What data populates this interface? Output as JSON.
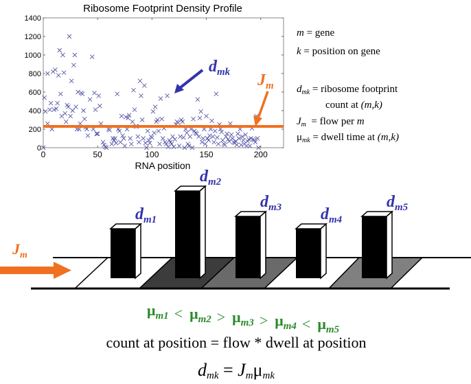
{
  "chart_data": {
    "type": "scatter",
    "title": "Ribosome Footprint Density Profile",
    "xlabel": "RNA position",
    "ylabel": "",
    "xlim": [
      0,
      221
    ],
    "ylim": [
      0,
      1400
    ],
    "xticks": [
      "0",
      "50",
      "100",
      "150",
      "200"
    ],
    "yticks": [
      "0",
      "200",
      "400",
      "600",
      "800",
      "1000",
      "1200",
      "1400"
    ],
    "hline": {
      "label": "J_m",
      "value": 230,
      "color": "#f07020"
    },
    "point_color": "#5a5aa8",
    "points": [
      [
        0,
        0
      ],
      [
        1,
        540
      ],
      [
        2,
        390
      ],
      [
        4,
        260
      ],
      [
        4,
        800
      ],
      [
        6,
        410
      ],
      [
        7,
        480
      ],
      [
        8,
        200
      ],
      [
        9,
        820
      ],
      [
        10,
        410
      ],
      [
        11,
        840
      ],
      [
        12,
        420
      ],
      [
        13,
        480
      ],
      [
        14,
        780
      ],
      [
        15,
        1050
      ],
      [
        16,
        580
      ],
      [
        17,
        340
      ],
      [
        18,
        1000
      ],
      [
        19,
        810
      ],
      [
        20,
        370
      ],
      [
        21,
        280
      ],
      [
        22,
        460
      ],
      [
        23,
        440
      ],
      [
        24,
        1200
      ],
      [
        25,
        340
      ],
      [
        26,
        720
      ],
      [
        27,
        400
      ],
      [
        28,
        890
      ],
      [
        29,
        1000
      ],
      [
        30,
        440
      ],
      [
        31,
        200
      ],
      [
        32,
        600
      ],
      [
        33,
        200
      ],
      [
        34,
        260
      ],
      [
        35,
        590
      ],
      [
        36,
        580
      ],
      [
        37,
        400
      ],
      [
        38,
        310
      ],
      [
        39,
        220
      ],
      [
        40,
        200
      ],
      [
        41,
        130
      ],
      [
        43,
        520
      ],
      [
        45,
        980
      ],
      [
        46,
        200
      ],
      [
        47,
        590
      ],
      [
        48,
        410
      ],
      [
        49,
        150
      ],
      [
        50,
        150
      ],
      [
        51,
        560
      ],
      [
        52,
        450
      ],
      [
        53,
        260
      ],
      [
        55,
        60
      ],
      [
        56,
        30
      ],
      [
        57,
        10
      ],
      [
        58,
        0
      ],
      [
        60,
        200
      ],
      [
        61,
        190
      ],
      [
        63,
        40
      ],
      [
        64,
        100
      ],
      [
        65,
        80
      ],
      [
        66,
        100
      ],
      [
        67,
        50
      ],
      [
        68,
        580
      ],
      [
        69,
        200
      ],
      [
        70,
        180
      ],
      [
        71,
        60
      ],
      [
        72,
        340
      ],
      [
        73,
        130
      ],
      [
        74,
        100
      ],
      [
        75,
        20
      ],
      [
        76,
        330
      ],
      [
        77,
        200
      ],
      [
        78,
        320
      ],
      [
        79,
        350
      ],
      [
        80,
        100
      ],
      [
        81,
        40
      ],
      [
        82,
        280
      ],
      [
        83,
        620
      ],
      [
        84,
        410
      ],
      [
        85,
        230
      ],
      [
        86,
        230
      ],
      [
        87,
        120
      ],
      [
        88,
        60
      ],
      [
        89,
        720
      ],
      [
        90,
        560
      ],
      [
        91,
        300
      ],
      [
        92,
        100
      ],
      [
        93,
        670
      ],
      [
        94,
        50
      ],
      [
        95,
        0
      ],
      [
        96,
        180
      ],
      [
        97,
        80
      ],
      [
        98,
        50
      ],
      [
        99,
        120
      ],
      [
        100,
        110
      ],
      [
        101,
        390
      ],
      [
        102,
        160
      ],
      [
        103,
        440
      ],
      [
        104,
        280
      ],
      [
        105,
        300
      ],
      [
        106,
        180
      ],
      [
        107,
        40
      ],
      [
        108,
        530
      ],
      [
        109,
        310
      ],
      [
        110,
        100
      ],
      [
        111,
        210
      ],
      [
        112,
        60
      ],
      [
        113,
        40
      ],
      [
        114,
        560
      ],
      [
        115,
        10
      ],
      [
        116,
        80
      ],
      [
        117,
        60
      ],
      [
        118,
        40
      ],
      [
        119,
        120
      ],
      [
        120,
        10
      ],
      [
        121,
        90
      ],
      [
        122,
        250
      ],
      [
        123,
        280
      ],
      [
        124,
        270
      ],
      [
        125,
        20
      ],
      [
        126,
        120
      ],
      [
        127,
        300
      ],
      [
        128,
        280
      ],
      [
        129,
        110
      ],
      [
        130,
        0
      ],
      [
        131,
        200
      ],
      [
        132,
        160
      ],
      [
        133,
        40
      ],
      [
        134,
        20
      ],
      [
        135,
        120
      ],
      [
        136,
        200
      ],
      [
        137,
        0
      ],
      [
        138,
        310
      ],
      [
        139,
        180
      ],
      [
        140,
        160
      ],
      [
        141,
        150
      ],
      [
        142,
        520
      ],
      [
        143,
        120
      ],
      [
        144,
        320
      ],
      [
        145,
        390
      ],
      [
        146,
        60
      ],
      [
        147,
        100
      ],
      [
        148,
        200
      ],
      [
        149,
        40
      ],
      [
        150,
        340
      ],
      [
        151,
        100
      ],
      [
        152,
        80
      ],
      [
        153,
        130
      ],
      [
        154,
        200
      ],
      [
        155,
        290
      ],
      [
        156,
        120
      ],
      [
        157,
        60
      ],
      [
        158,
        180
      ],
      [
        159,
        580
      ],
      [
        160,
        110
      ],
      [
        161,
        40
      ],
      [
        162,
        250
      ],
      [
        163,
        200
      ],
      [
        164,
        170
      ],
      [
        165,
        80
      ],
      [
        166,
        40
      ],
      [
        167,
        30
      ],
      [
        168,
        120
      ],
      [
        169,
        150
      ],
      [
        170,
        90
      ],
      [
        171,
        70
      ],
      [
        172,
        260
      ],
      [
        173,
        140
      ],
      [
        174,
        100
      ],
      [
        175,
        60
      ],
      [
        176,
        50
      ],
      [
        177,
        70
      ],
      [
        178,
        30
      ],
      [
        179,
        150
      ],
      [
        180,
        100
      ],
      [
        181,
        200
      ],
      [
        182,
        30
      ],
      [
        183,
        120
      ],
      [
        184,
        80
      ],
      [
        185,
        40
      ],
      [
        186,
        140
      ],
      [
        187,
        20
      ],
      [
        188,
        70
      ],
      [
        189,
        90
      ],
      [
        190,
        20
      ],
      [
        191,
        100
      ],
      [
        192,
        210
      ],
      [
        193,
        90
      ],
      [
        194,
        80
      ],
      [
        195,
        60
      ],
      [
        196,
        340
      ],
      [
        197,
        100
      ],
      [
        198,
        0
      ]
    ]
  },
  "legend": {
    "line1": {
      "sym": "m",
      "text": " = gene"
    },
    "line2": {
      "sym": "k",
      "text": " = position on gene"
    },
    "line3": {
      "sym": "d",
      "sub": "mk",
      "text": " = ribosome footprint"
    },
    "line3b": {
      "text": "count at ",
      "em": "(m,k)"
    },
    "line4": {
      "sym": "J",
      "sub": "m",
      "text": "  = flow per ",
      "em": "m"
    },
    "line5": {
      "sym": "μ",
      "sub": "mk",
      "text": " = dwell time at ",
      "em": "(m,k)"
    }
  },
  "annotations": {
    "dmk": {
      "sym": "d",
      "sub": "mk"
    },
    "jm": {
      "sym": "J",
      "sub": "m"
    }
  },
  "diagram": {
    "flow_label": {
      "sym": "J",
      "sub": "m"
    },
    "bars": [
      {
        "sym": "d",
        "sub": "m1",
        "height": 72
      },
      {
        "sym": "d",
        "sub": "m2",
        "height": 127
      },
      {
        "sym": "d",
        "sub": "m3",
        "height": 90
      },
      {
        "sym": "d",
        "sub": "m4",
        "height": 72
      },
      {
        "sym": "d",
        "sub": "m5",
        "height": 90
      }
    ],
    "cell_fills": [
      "#ffffff",
      "#3c3c3c",
      "#6a6a6a",
      "#ffffff",
      "#808080"
    ],
    "dwell": [
      {
        "sym": "μ",
        "sub": "m1"
      },
      {
        "op": "<"
      },
      {
        "sym": "μ",
        "sub": "m2"
      },
      {
        "op": ">"
      },
      {
        "sym": "μ",
        "sub": "m3"
      },
      {
        "op": ">"
      },
      {
        "sym": "μ",
        "sub": "m4"
      },
      {
        "op": "<"
      },
      {
        "sym": "μ",
        "sub": "m5"
      }
    ]
  },
  "equation_text": "count at position = flow * dwell at position",
  "equation": {
    "d": "d",
    "d_sub": "mk",
    "eq": " = ",
    "J": "J",
    "J_sub": "m",
    "mu": "μ",
    "mu_sub": "mk"
  },
  "colors": {
    "blue": "#3333aa",
    "orange": "#f07020",
    "green": "#2a8a2a"
  }
}
